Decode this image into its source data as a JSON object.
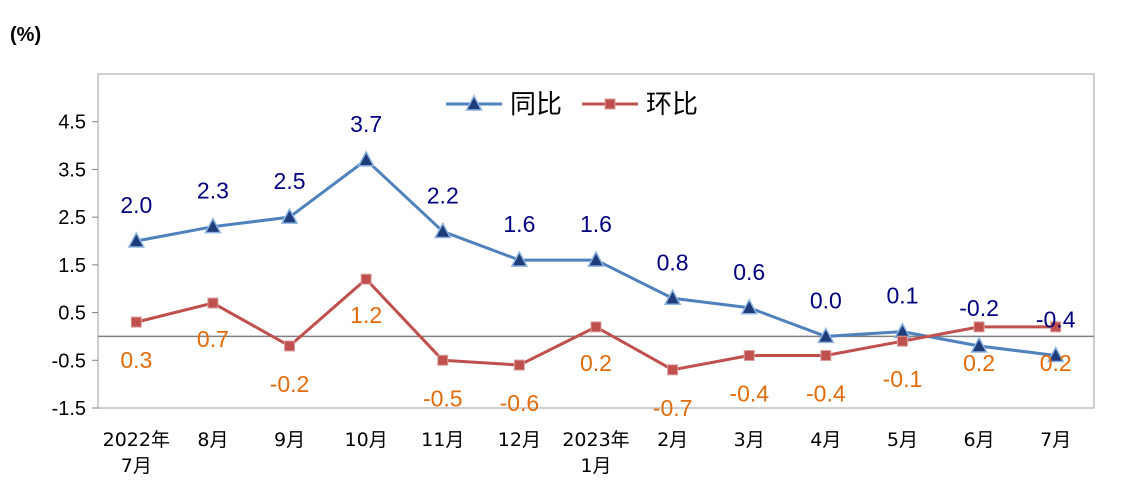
{
  "chart_data": {
    "type": "line",
    "unit_label": "(%)",
    "ylim": [
      -1.5,
      5.5
    ],
    "yticks": [
      "4.5",
      "3.5",
      "2.5",
      "1.5",
      "0.5",
      "-0.5",
      "-1.5"
    ],
    "ytick_values": [
      4.5,
      3.5,
      2.5,
      1.5,
      0.5,
      -0.5,
      -1.5
    ],
    "categories": [
      [
        "2022年",
        "7月"
      ],
      [
        "8月"
      ],
      [
        "9月"
      ],
      [
        "10月"
      ],
      [
        "11月"
      ],
      [
        "12月"
      ],
      [
        "2023年",
        "1月"
      ],
      [
        "2月"
      ],
      [
        "3月"
      ],
      [
        "4月"
      ],
      [
        "5月"
      ],
      [
        "6月"
      ],
      [
        "7月"
      ]
    ],
    "legend_position": "top-center",
    "series": [
      {
        "name": "同比",
        "color": "#4f81bd",
        "label_color": "#00007f",
        "marker": "triangle",
        "values": [
          2.0,
          2.3,
          2.5,
          3.7,
          2.2,
          1.6,
          1.6,
          0.8,
          0.6,
          0.0,
          0.1,
          -0.2,
          -0.4
        ],
        "labels": [
          "2.0",
          "2.3",
          "2.5",
          "3.7",
          "2.2",
          "1.6",
          "1.6",
          "0.8",
          "0.6",
          "0.0",
          "0.1",
          "-0.2",
          "-0.4"
        ]
      },
      {
        "name": "环比",
        "color": "#c0504d",
        "label_color": "#e26b0a",
        "marker": "square",
        "values": [
          0.3,
          0.7,
          -0.2,
          1.2,
          -0.5,
          -0.6,
          0.2,
          -0.7,
          -0.4,
          -0.4,
          -0.1,
          0.2,
          0.2
        ],
        "labels": [
          "0.3",
          "0.7",
          "-0.2",
          "1.2",
          "-0.5",
          "-0.6",
          "0.2",
          "-0.7",
          "-0.4",
          "-0.4",
          "-0.1",
          "0.2",
          "0.2"
        ]
      }
    ]
  }
}
